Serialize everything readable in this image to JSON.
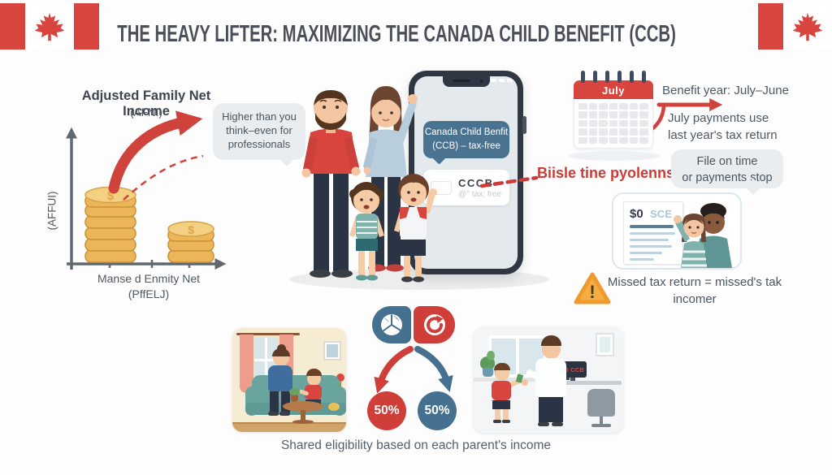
{
  "header": {
    "title": "THE HEAVY LIFTER: MAXIMIZING THE CANADA CHILD BENEFIT (CCB)"
  },
  "afni_chart": {
    "title": "Adjusted Family Net Income",
    "subtitle": "(AFNI)",
    "y_axis_label": "(AFFUI)",
    "x_axis_label": "Manse d Enmity Net",
    "x_axis_sublabel": "(PffELJ)",
    "coin_symbol": "$",
    "callout_lines": [
      "Higher than you",
      "think–even for",
      "professionals"
    ]
  },
  "family_phone": {
    "bubble_lines": [
      "Canada Child Benfit",
      "(CCB) – tax-free"
    ],
    "card_title": "CCCB",
    "card_subtitle": "@° tax: free",
    "alert_text": "Biisle tine pyolenns!"
  },
  "benefit_year": {
    "calendar_month": "July",
    "heading": "Benefit year: July–June",
    "payments_lines": [
      "July payments use",
      "last year's tax return"
    ],
    "file_bubble_lines": [
      "File on time",
      "or payments stop"
    ],
    "document_amount": "$0",
    "document_code": "SCE",
    "warning_mark": "!",
    "warning_lines": [
      "Missed tax return = missed's tak",
      "incomer"
    ]
  },
  "shared_eligibility": {
    "left_share": "50%",
    "right_share": "50%",
    "monitor_label": "$0 CCB",
    "caption": "Shared eligibility based on each parent's income"
  },
  "colors": {
    "flag_red": "#d8453f",
    "accent_red": "#cf3e39",
    "slate_blue": "#46708f",
    "bubble_gray": "#e9edf0",
    "title_color": "#4a4f59",
    "body_text": "#4d5863",
    "coin_gold": "#eab659",
    "warning_orange": "#f6ad43"
  }
}
